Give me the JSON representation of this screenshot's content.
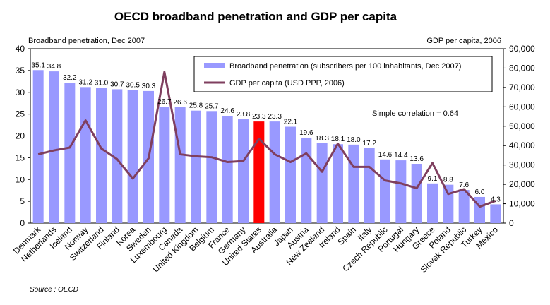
{
  "chart_data": {
    "type": "bar",
    "title": "OECD broadband penetration and GDP per capita",
    "ylabel_left": "Broadband penetration, Dec 2007",
    "ylabel_right": "GDP per capita, 2006",
    "ylim_left": [
      0,
      40
    ],
    "ylim_right": [
      0,
      90000
    ],
    "yticks_left": [
      "0",
      "5",
      "10",
      "15",
      "20",
      "25",
      "30",
      "35",
      "40"
    ],
    "yticks_right": [
      "0",
      "10,000",
      "20,000",
      "30,000",
      "40,000",
      "50,000",
      "60,000",
      "70,000",
      "80,000",
      "90,000"
    ],
    "categories": [
      "Denmark",
      "Netherlands",
      "Iceland",
      "Norway",
      "Switzerland",
      "Finland",
      "Korea",
      "Sweden",
      "Luxembourg",
      "Canada",
      "United Kingdom",
      "Belgium",
      "France",
      "Germany",
      "United States",
      "Australia",
      "Japan",
      "Austria",
      "New Zealand",
      "Ireland",
      "Spain",
      "Italy",
      "Czech Republic",
      "Portugal",
      "Hungary",
      "Greece",
      "Poland",
      "Slovak Republic",
      "Turkey",
      "Mexico"
    ],
    "series": [
      {
        "name": "Broadband penetration (subscribers per 100 inhabitants, Dec 2007)",
        "axis": "left",
        "kind": "bar",
        "color": "#9999FF",
        "highlight_index": 14,
        "highlight_color": "#FF0000",
        "values": [
          35.1,
          34.8,
          32.2,
          31.2,
          31.0,
          30.7,
          30.5,
          30.3,
          26.7,
          26.6,
          25.8,
          25.7,
          24.6,
          23.8,
          23.3,
          23.3,
          22.1,
          19.6,
          18.3,
          18.1,
          18.0,
          17.2,
          14.6,
          14.4,
          13.6,
          9.1,
          8.8,
          7.6,
          6.0,
          4.3
        ],
        "labels": [
          "35.1",
          "34.8",
          "32.2",
          "31.2",
          "31.0",
          "30.7",
          "30.5",
          "30.3",
          "26.7",
          "26.6",
          "25.8",
          "25.7",
          "24.6",
          "23.8",
          "23.3",
          "23.3",
          "22.1",
          "19.6",
          "18.3",
          "18.1",
          "18.0",
          "17.2",
          "14.6",
          "14.4",
          "13.6",
          "9.1",
          "8.8",
          "7.6",
          "6.0",
          "4.3"
        ]
      },
      {
        "name": "GDP per capita (USD PPP, 2006)",
        "axis": "right",
        "kind": "line",
        "color": "#7F3F5F",
        "values": [
          35500,
          37500,
          39000,
          53000,
          38500,
          33000,
          23000,
          33500,
          78000,
          35500,
          34500,
          34000,
          31500,
          32000,
          43500,
          35500,
          31500,
          36000,
          26500,
          41000,
          29000,
          29000,
          22000,
          20500,
          18000,
          31000,
          15000,
          17500,
          8500,
          11500
        ]
      }
    ],
    "annotation": "Simple correlation = 0.64",
    "legend_position": "top-right",
    "grid": false
  },
  "source": "Source : OECD"
}
